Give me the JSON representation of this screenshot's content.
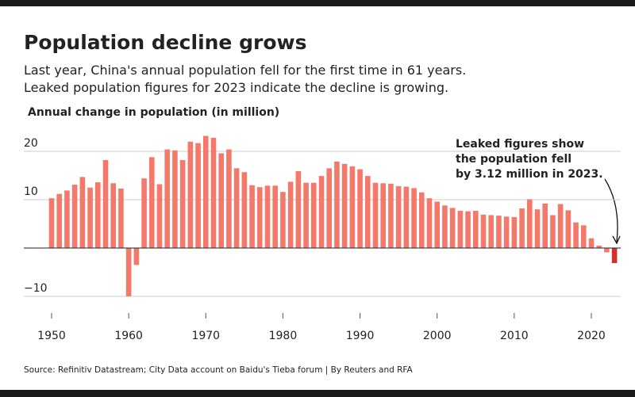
{
  "chart_data": {
    "type": "bar",
    "title": "Population decline grows",
    "subtitle": [
      "Last year, China's annual population fell for the first time in 61 years.",
      "Leaked population figures for 2023 indicate the decline is growing."
    ],
    "y_label": "Annual change in population (in million)",
    "source": "Source: Refinitiv Datastream; City Data account on Baidu's Tieba forum | By Reuters and RFA",
    "annotation": {
      "lines": [
        "Leaked figures show",
        "the population fell",
        "by 3.12 million in 2023."
      ],
      "x": 2023,
      "color": "#d6302b"
    },
    "x": [
      1950,
      1951,
      1952,
      1953,
      1954,
      1955,
      1956,
      1957,
      1958,
      1959,
      1960,
      1961,
      1962,
      1963,
      1964,
      1965,
      1966,
      1967,
      1968,
      1969,
      1970,
      1971,
      1972,
      1973,
      1974,
      1975,
      1976,
      1977,
      1978,
      1979,
      1980,
      1981,
      1982,
      1983,
      1984,
      1985,
      1986,
      1987,
      1988,
      1989,
      1990,
      1991,
      1992,
      1993,
      1994,
      1995,
      1996,
      1997,
      1998,
      1999,
      2000,
      2001,
      2002,
      2003,
      2004,
      2005,
      2006,
      2007,
      2008,
      2009,
      2010,
      2011,
      2012,
      2013,
      2014,
      2015,
      2016,
      2017,
      2018,
      2019,
      2020,
      2021,
      2022,
      2023
    ],
    "values": [
      10.3,
      11.2,
      11.9,
      13.1,
      14.7,
      12.5,
      13.6,
      18.2,
      13.4,
      12.3,
      -10.0,
      -3.5,
      14.4,
      18.8,
      13.2,
      20.4,
      20.2,
      18.2,
      22.0,
      21.7,
      23.2,
      22.8,
      19.6,
      20.4,
      16.5,
      15.7,
      13.0,
      12.6,
      12.9,
      12.9,
      11.6,
      13.7,
      15.9,
      13.5,
      13.5,
      14.9,
      16.5,
      17.9,
      17.4,
      16.9,
      16.3,
      14.9,
      13.5,
      13.4,
      13.3,
      12.8,
      12.7,
      12.4,
      11.5,
      10.3,
      9.6,
      8.8,
      8.3,
      7.7,
      7.6,
      7.7,
      6.9,
      6.8,
      6.7,
      6.5,
      6.4,
      8.2,
      10.1,
      8.0,
      9.2,
      6.8,
      9.1,
      7.8,
      5.3,
      4.7,
      2.0,
      0.5,
      -0.9,
      -3.12
    ],
    "color": "#f4796b",
    "xlim": [
      1946.5,
      2024.5
    ],
    "xticks": [
      1950,
      1960,
      1970,
      1980,
      1990,
      2000,
      2010,
      2020
    ],
    "ylim": [
      -10,
      25
    ],
    "yticks": [
      {
        "value": -10,
        "label": "−10"
      },
      10,
      20
    ],
    "grid": true
  }
}
